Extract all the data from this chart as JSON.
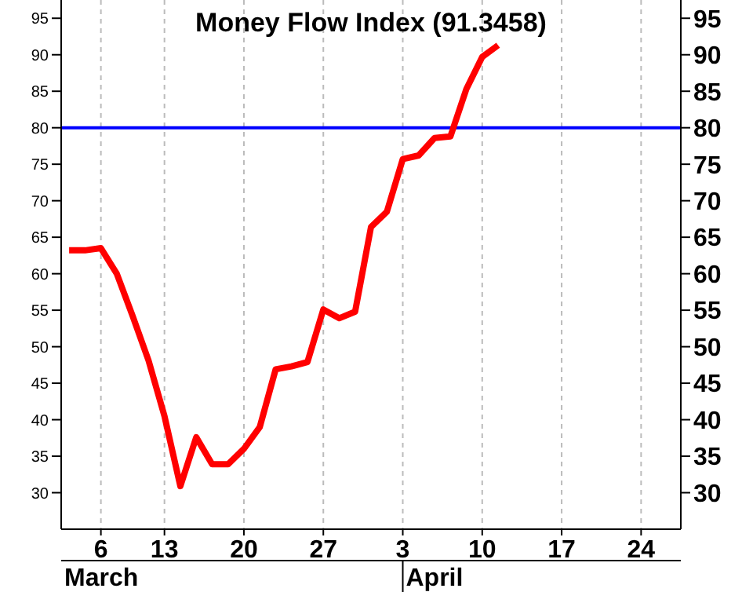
{
  "chart_data": {
    "type": "line",
    "title": "Money Flow Index (91.3458)",
    "categories": [
      null,
      null,
      "6",
      null,
      null,
      null,
      "13",
      null,
      null,
      null,
      null,
      "20",
      null,
      null,
      null,
      null,
      "27",
      null,
      null,
      null,
      null,
      "3",
      null,
      null,
      null,
      null,
      "10",
      null,
      null,
      null,
      null,
      "17",
      null,
      null,
      null,
      null,
      "24",
      null,
      null
    ],
    "series": [
      {
        "color": "#ff0000",
        "values": [
          63.2,
          63.2,
          63.5,
          60,
          54.2,
          48.1,
          40.5,
          30.9,
          37.6,
          33.9,
          33.9,
          36,
          39,
          46.9,
          47.3,
          47.9,
          55.1,
          53.9,
          54.8,
          66.4,
          68.5,
          75.7,
          76.2,
          78.6,
          78.8,
          85.3,
          89.7,
          91.3,
          null,
          null,
          null,
          null,
          null,
          null,
          null,
          null,
          null,
          null,
          null
        ]
      }
    ],
    "ylim": [
      25,
      97.5
    ],
    "yticks": [
      30,
      35,
      40,
      45,
      50,
      55,
      60,
      65,
      70,
      75,
      80,
      85,
      90,
      95
    ],
    "y2lim": [
      25,
      97.5
    ],
    "y2ticks": [
      30,
      35,
      40,
      45,
      50,
      55,
      60,
      65,
      70,
      75,
      80,
      85,
      90,
      95
    ],
    "ref_lines": [
      {
        "axis": "y",
        "value": 80,
        "color": "#0000ff"
      }
    ],
    "annotations": [
      "March",
      "April"
    ],
    "grid": "x",
    "marker": "none",
    "line_style": "solid"
  }
}
